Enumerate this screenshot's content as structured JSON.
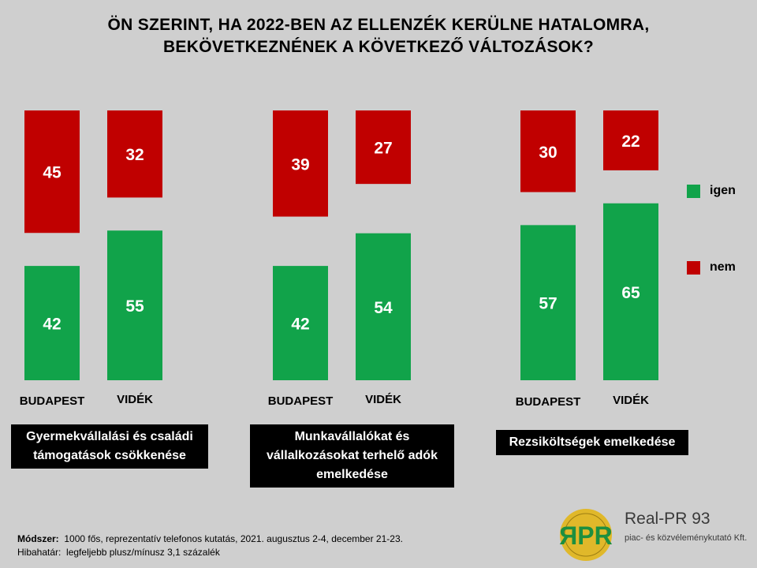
{
  "title_line1": "ÖN SZERINT, HA 2022-BEN AZ ELLENZÉK KERÜLNE HATALOMRA,",
  "title_line2": "BEKÖVETKEZNÉNEK A KÖVETKEZŐ VÁLTOZÁSOK?",
  "legend": {
    "yes_label": "igen",
    "no_label": "nem"
  },
  "colors": {
    "yes": "#11a34a",
    "no": "#c00000",
    "background": "#cfcfcf",
    "caption_bg": "#000000"
  },
  "chart_data": {
    "type": "bar",
    "series": [
      {
        "name": "igen",
        "color": "#11a34a"
      },
      {
        "name": "nem",
        "color": "#c00000"
      }
    ],
    "groups": [
      {
        "caption": "Gyermekvállalási és családi támogatások csökkenése",
        "bars": [
          {
            "category": "BUDAPEST",
            "igen": 42,
            "nem": 45
          },
          {
            "category": "VIDÉK",
            "igen": 55,
            "nem": 32
          }
        ]
      },
      {
        "caption": "Munkavállalókat és vállalkozásokat terhelő adók emelkedése",
        "bars": [
          {
            "category": "BUDAPEST",
            "igen": 42,
            "nem": 39
          },
          {
            "category": "VIDÉK",
            "igen": 54,
            "nem": 27
          }
        ]
      },
      {
        "caption": "Rezsiköltségek emelkedése",
        "bars": [
          {
            "category": "BUDAPEST",
            "igen": 57,
            "nem": 30
          },
          {
            "category": "VIDÉK",
            "igen": 65,
            "nem": 22
          }
        ]
      }
    ],
    "legend_position": "right",
    "grid": false
  },
  "footer": {
    "method_label": "Módszer:",
    "method_text": "1000 fős, reprezentatív telefonos kutatás, 2021. augusztus 2-4, december 21-23.",
    "error_label": "Hibahatár:",
    "error_text": "legfeljebb plusz/mínusz 3,1 százalék"
  },
  "logo": {
    "letters": "ЯPR",
    "name": "Real-PR 93",
    "subtitle": "piac- és közvéleménykutató Kft."
  }
}
